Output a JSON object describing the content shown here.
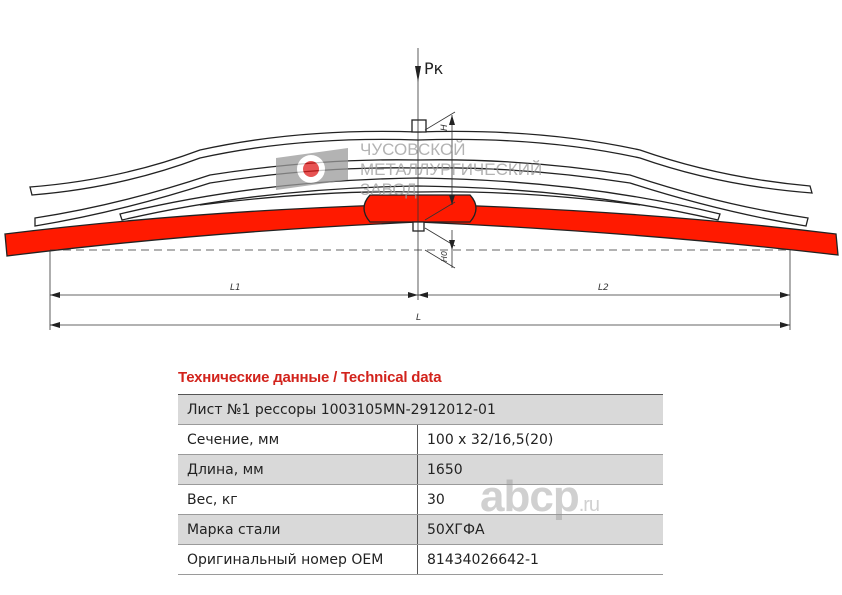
{
  "drawing": {
    "load_label": "Рк",
    "dim_L1": "L1",
    "dim_L2": "L2",
    "dim_L": "L",
    "dim_H": "H",
    "dim_H0": "H0",
    "accent_color": "#ff1a00",
    "logo": {
      "line1": "ЧУСОВСКОЙ",
      "line2": "МЕТАЛЛУРГИЧЕСКИЙ",
      "line3": "ЗАВОД"
    }
  },
  "table": {
    "title": "Технические данные / Technical data",
    "header": "Лист №1 рессоры 1003105MN-2912012-01",
    "rows": [
      {
        "label": "Сечение, мм",
        "value": "100 x 32/16,5(20)"
      },
      {
        "label": "Длина, мм",
        "value": "1650"
      },
      {
        "label": "Вес, кг",
        "value": "30"
      },
      {
        "label": "Марка стали",
        "value": "50ХГФА"
      },
      {
        "label": "Оригинальный номер OEM",
        "value": "81434026642-1"
      }
    ]
  },
  "watermark": {
    "main": "abcp",
    "suffix": ".ru"
  }
}
